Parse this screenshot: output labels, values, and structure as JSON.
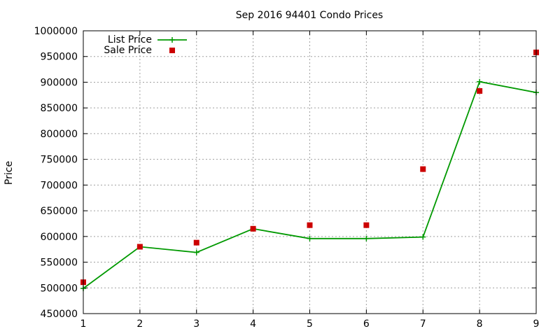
{
  "chart_data": {
    "type": "line",
    "title": "Sep 2016 94401 Condo Prices",
    "xlabel": "",
    "ylabel": "Price",
    "xlim": [
      1,
      9
    ],
    "ylim": [
      450000,
      1000000
    ],
    "x_ticks": [
      "1",
      "2",
      "3",
      "4",
      "5",
      "6",
      "7",
      "8",
      "9"
    ],
    "y_ticks": [
      "450000",
      "500000",
      "550000",
      "600000",
      "650000",
      "700000",
      "750000",
      "800000",
      "850000",
      "900000",
      "950000",
      "1000000"
    ],
    "grid": true,
    "legend_position": "top-left",
    "x": [
      1,
      2,
      3,
      4,
      5,
      6,
      7,
      8,
      9
    ],
    "series": [
      {
        "name": "List Price",
        "style": "line-with-plus-markers",
        "color": "#009900",
        "values": [
          499000,
          580000,
          569000,
          615000,
          596000,
          596000,
          599000,
          901000,
          880000
        ]
      },
      {
        "name": "Sale Price",
        "style": "square-markers",
        "color": "#cc0000",
        "values": [
          511000,
          580000,
          588000,
          615000,
          622000,
          622000,
          731000,
          883000,
          958000
        ]
      }
    ]
  }
}
